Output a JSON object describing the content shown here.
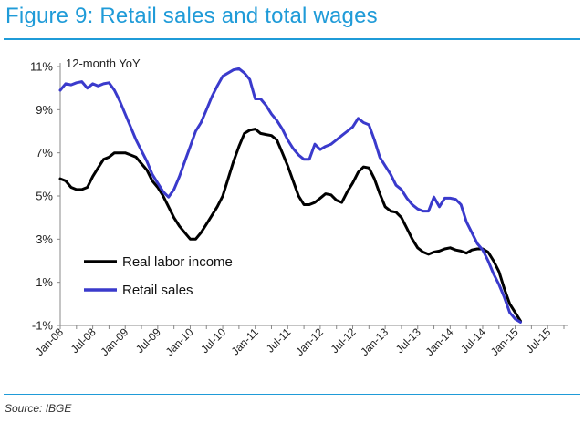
{
  "figure_title": "Figure 9: Retail sales and total wages",
  "source": "Source: IBGE",
  "colors": {
    "title": "#1f9bd8",
    "real_labor_income": "#000000",
    "retail_sales": "#3a3acc",
    "axis": "#888888"
  },
  "chart_data": {
    "type": "line",
    "title": "Figure 9: Retail sales and total wages",
    "ylabel": "12-month YoY",
    "xlabel": "",
    "ylim": [
      -1,
      11
    ],
    "yticks": [
      -1,
      1,
      3,
      5,
      7,
      9,
      11
    ],
    "ytick_labels": [
      "-1%",
      "1%",
      "3%",
      "5%",
      "7%",
      "9%",
      "11%"
    ],
    "x_start": "Jan-08",
    "x_end": "Oct-15",
    "xticks": [
      0,
      6,
      12,
      18,
      24,
      30,
      36,
      42,
      48,
      54,
      60,
      66,
      72,
      78,
      84,
      90
    ],
    "xtick_labels": [
      "Jan-08",
      "Jul-08",
      "Jan-09",
      "Jul-09",
      "Jan-10",
      "Jul-10",
      "Jan-11",
      "Jul-11",
      "Jan-12",
      "Jul-12",
      "Jan-13",
      "Jul-13",
      "Jan-14",
      "Jul-14",
      "Jan-15",
      "Jul-15"
    ],
    "legend": {
      "placement": "lower-left",
      "entries": [
        "Real labor income",
        "Retail sales"
      ]
    },
    "series": [
      {
        "name": "Real labor income",
        "color": "#000000",
        "points": [
          [
            0,
            5.8
          ],
          [
            1,
            5.7
          ],
          [
            2,
            5.4
          ],
          [
            3,
            5.3
          ],
          [
            4,
            5.3
          ],
          [
            5,
            5.4
          ],
          [
            6,
            5.9
          ],
          [
            7,
            6.3
          ],
          [
            8,
            6.7
          ],
          [
            9,
            6.8
          ],
          [
            10,
            7.0
          ],
          [
            11,
            7.0
          ],
          [
            12,
            7.0
          ],
          [
            13,
            6.9
          ],
          [
            14,
            6.8
          ],
          [
            15,
            6.5
          ],
          [
            16,
            6.2
          ],
          [
            17,
            5.7
          ],
          [
            18,
            5.4
          ],
          [
            19,
            5.0
          ],
          [
            20,
            4.5
          ],
          [
            21,
            4.0
          ],
          [
            22,
            3.6
          ],
          [
            23,
            3.3
          ],
          [
            24,
            3.0
          ],
          [
            25,
            3.0
          ],
          [
            26,
            3.3
          ],
          [
            27,
            3.7
          ],
          [
            28,
            4.1
          ],
          [
            29,
            4.5
          ],
          [
            30,
            5.0
          ],
          [
            31,
            5.8
          ],
          [
            32,
            6.6
          ],
          [
            33,
            7.3
          ],
          [
            34,
            7.9
          ],
          [
            35,
            8.05
          ],
          [
            36,
            8.1
          ],
          [
            37,
            7.9
          ],
          [
            38,
            7.85
          ],
          [
            39,
            7.8
          ],
          [
            40,
            7.6
          ],
          [
            41,
            7.0
          ],
          [
            42,
            6.4
          ],
          [
            43,
            5.7
          ],
          [
            44,
            5.0
          ],
          [
            45,
            4.6
          ],
          [
            46,
            4.6
          ],
          [
            47,
            4.7
          ],
          [
            48,
            4.9
          ],
          [
            49,
            5.1
          ],
          [
            50,
            5.05
          ],
          [
            51,
            4.8
          ],
          [
            52,
            4.7
          ],
          [
            53,
            5.2
          ],
          [
            54,
            5.6
          ],
          [
            55,
            6.1
          ],
          [
            56,
            6.35
          ],
          [
            57,
            6.3
          ],
          [
            58,
            5.8
          ],
          [
            59,
            5.1
          ],
          [
            60,
            4.5
          ],
          [
            61,
            4.3
          ],
          [
            62,
            4.25
          ],
          [
            63,
            4.0
          ],
          [
            64,
            3.5
          ],
          [
            65,
            3.0
          ],
          [
            66,
            2.6
          ],
          [
            67,
            2.4
          ],
          [
            68,
            2.3
          ],
          [
            69,
            2.4
          ],
          [
            70,
            2.45
          ],
          [
            71,
            2.55
          ],
          [
            72,
            2.6
          ],
          [
            73,
            2.5
          ],
          [
            74,
            2.45
          ],
          [
            75,
            2.35
          ],
          [
            76,
            2.5
          ],
          [
            77,
            2.55
          ],
          [
            78,
            2.55
          ],
          [
            79,
            2.4
          ],
          [
            80,
            2.0
          ],
          [
            81,
            1.5
          ],
          [
            82,
            0.7
          ],
          [
            83,
            0.0
          ],
          [
            84,
            -0.4
          ],
          [
            85,
            -0.8
          ]
        ]
      },
      {
        "name": "Retail sales",
        "color": "#3a3acc",
        "points": [
          [
            0,
            9.9
          ],
          [
            1,
            10.2
          ],
          [
            2,
            10.15
          ],
          [
            3,
            10.25
          ],
          [
            4,
            10.3
          ],
          [
            5,
            10.0
          ],
          [
            6,
            10.2
          ],
          [
            7,
            10.1
          ],
          [
            8,
            10.2
          ],
          [
            9,
            10.25
          ],
          [
            10,
            9.9
          ],
          [
            11,
            9.4
          ],
          [
            12,
            8.8
          ],
          [
            13,
            8.2
          ],
          [
            14,
            7.6
          ],
          [
            15,
            7.1
          ],
          [
            16,
            6.6
          ],
          [
            17,
            6.0
          ],
          [
            18,
            5.6
          ],
          [
            19,
            5.2
          ],
          [
            20,
            4.95
          ],
          [
            21,
            5.3
          ],
          [
            22,
            5.9
          ],
          [
            23,
            6.6
          ],
          [
            24,
            7.3
          ],
          [
            25,
            8.0
          ],
          [
            26,
            8.4
          ],
          [
            27,
            9.0
          ],
          [
            28,
            9.6
          ],
          [
            29,
            10.1
          ],
          [
            30,
            10.55
          ],
          [
            31,
            10.7
          ],
          [
            32,
            10.85
          ],
          [
            33,
            10.9
          ],
          [
            34,
            10.7
          ],
          [
            35,
            10.4
          ],
          [
            36,
            9.5
          ],
          [
            37,
            9.5
          ],
          [
            38,
            9.2
          ],
          [
            39,
            8.8
          ],
          [
            40,
            8.5
          ],
          [
            41,
            8.1
          ],
          [
            42,
            7.6
          ],
          [
            43,
            7.2
          ],
          [
            44,
            6.9
          ],
          [
            45,
            6.7
          ],
          [
            46,
            6.7
          ],
          [
            47,
            7.4
          ],
          [
            48,
            7.15
          ],
          [
            49,
            7.3
          ],
          [
            50,
            7.4
          ],
          [
            51,
            7.6
          ],
          [
            52,
            7.8
          ],
          [
            53,
            8.0
          ],
          [
            54,
            8.2
          ],
          [
            55,
            8.6
          ],
          [
            56,
            8.4
          ],
          [
            57,
            8.3
          ],
          [
            58,
            7.6
          ],
          [
            59,
            6.8
          ],
          [
            60,
            6.4
          ],
          [
            61,
            6.0
          ],
          [
            62,
            5.5
          ],
          [
            63,
            5.3
          ],
          [
            64,
            4.9
          ],
          [
            65,
            4.6
          ],
          [
            66,
            4.4
          ],
          [
            67,
            4.3
          ],
          [
            68,
            4.3
          ],
          [
            69,
            4.95
          ],
          [
            70,
            4.5
          ],
          [
            71,
            4.9
          ],
          [
            72,
            4.9
          ],
          [
            73,
            4.85
          ],
          [
            74,
            4.6
          ],
          [
            75,
            3.8
          ],
          [
            76,
            3.3
          ],
          [
            77,
            2.8
          ],
          [
            78,
            2.5
          ],
          [
            79,
            2.0
          ],
          [
            80,
            1.4
          ],
          [
            81,
            0.9
          ],
          [
            82,
            0.3
          ],
          [
            83,
            -0.4
          ],
          [
            84,
            -0.7
          ],
          [
            85,
            -0.85
          ]
        ]
      }
    ]
  }
}
